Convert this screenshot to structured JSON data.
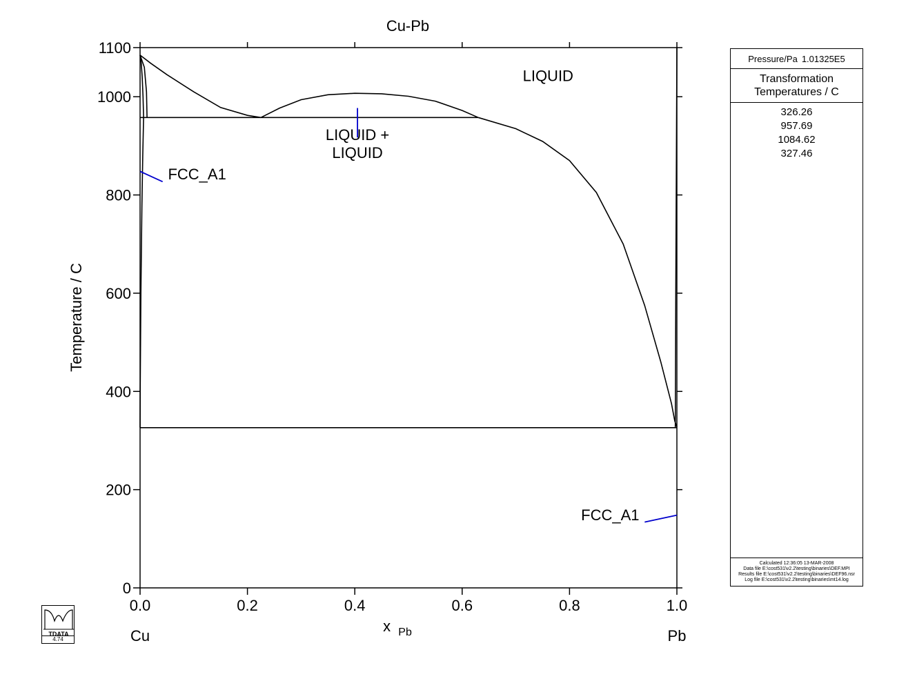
{
  "chart_data": {
    "type": "line",
    "title": "Cu-Pb",
    "xlabel": "x",
    "xlabel_subscript": "Pb",
    "ylabel": "Temperature / C",
    "xlim": [
      0,
      1
    ],
    "ylim": [
      0,
      1100
    ],
    "x_ticks": [
      0.0,
      0.2,
      0.4,
      0.6,
      0.8,
      1.0
    ],
    "x_tick_labels": [
      "0.0",
      "0.2",
      "0.4",
      "0.6",
      "0.8",
      "1.0"
    ],
    "y_ticks": [
      0,
      200,
      400,
      600,
      800,
      1000,
      1100
    ],
    "y_tick_labels": [
      "0",
      "200",
      "400",
      "600",
      "800",
      "1000",
      "1100"
    ],
    "grid": false,
    "left_component": "Cu",
    "right_component": "Pb",
    "series": [
      {
        "color": "#000000",
        "points": [
          [
            0.0,
            1084.62
          ],
          [
            0.02,
            1068
          ],
          [
            0.05,
            1045
          ],
          [
            0.1,
            1010
          ],
          [
            0.15,
            978
          ],
          [
            0.2,
            962
          ],
          [
            0.225,
            957.69
          ]
        ]
      },
      {
        "color": "#000000",
        "points": [
          [
            0.225,
            957.69
          ],
          [
            0.26,
            977
          ],
          [
            0.3,
            994
          ],
          [
            0.35,
            1004
          ],
          [
            0.4,
            1007
          ],
          [
            0.45,
            1006
          ],
          [
            0.5,
            1001
          ],
          [
            0.55,
            991
          ],
          [
            0.6,
            972
          ],
          [
            0.63,
            957.69
          ]
        ]
      },
      {
        "color": "#000000",
        "points": [
          [
            0.63,
            957.69
          ],
          [
            0.7,
            935
          ],
          [
            0.75,
            909
          ],
          [
            0.8,
            870
          ],
          [
            0.85,
            805
          ],
          [
            0.9,
            700
          ],
          [
            0.94,
            575
          ],
          [
            0.97,
            460
          ],
          [
            0.99,
            375
          ],
          [
            0.996,
            340
          ],
          [
            1.0,
            327.46
          ]
        ]
      },
      {
        "color": "#000000",
        "points": [
          [
            0.0,
            1084.62
          ],
          [
            0.002,
            1070
          ],
          [
            0.004,
            1040
          ],
          [
            0.0055,
            1000
          ],
          [
            0.0065,
            957.69
          ]
        ]
      },
      {
        "color": "#000000",
        "points": [
          [
            0.0,
            1084.62
          ],
          [
            0.008,
            1060
          ],
          [
            0.012,
            1010
          ],
          [
            0.013,
            957.69
          ]
        ]
      },
      {
        "color": "#000000",
        "points": [
          [
            0.0065,
            957.69
          ],
          [
            0.005,
            880
          ],
          [
            0.0035,
            780
          ],
          [
            0.0015,
            600
          ],
          [
            0.0003,
            400
          ],
          [
            0.0,
            326.26
          ]
        ]
      },
      {
        "color": "#000000",
        "points": [
          [
            0.0,
            957.69
          ],
          [
            0.63,
            957.69
          ]
        ]
      },
      {
        "color": "#000000",
        "points": [
          [
            0.0,
            326.26
          ],
          [
            1.0,
            326.26
          ]
        ]
      },
      {
        "color": "#000000",
        "points": [
          [
            0.997,
            326.26
          ],
          [
            0.998,
            600
          ],
          [
            1.0,
            1100
          ]
        ]
      }
    ],
    "annotations": [
      {
        "text": "LIQUID",
        "x": 0.76,
        "y": 1032
      },
      {
        "text": "LIQUID +",
        "x": 0.405,
        "y": 912
      },
      {
        "text": "LIQUID",
        "x": 0.405,
        "y": 875
      },
      {
        "text": "FCC_A1",
        "x": 0.052,
        "y": 832
      },
      {
        "text": "FCC_A1",
        "x": 0.93,
        "y": 138
      }
    ],
    "leader_lines": [
      {
        "color": "#0000cc",
        "from": [
          0.405,
          977
        ],
        "to": [
          0.405,
          917
        ]
      },
      {
        "color": "#0000cc",
        "from": [
          0.0,
          848
        ],
        "to": [
          0.042,
          827
        ]
      },
      {
        "color": "#0000cc",
        "from": [
          1.0,
          148
        ],
        "to": [
          0.94,
          134
        ]
      }
    ]
  },
  "side_panel": {
    "pressure_label": "Pressure/Pa",
    "pressure_value": "1.01325E5",
    "header_line1": "Transformation",
    "header_line2": "Temperatures / C",
    "temperatures": [
      "326.26",
      "957.69",
      "1084.62",
      "327.46"
    ],
    "footer": {
      "calculated": "Calculated  12:36:05  13-MAR-2008",
      "data_file": "Data file  E:\\cost531\\v2.2\\testing\\binaries\\DEF.MPI",
      "results_file": "Results file  E:\\cost531\\v2.2\\testing\\binaries\\DEF96.nsr",
      "log_file": "Log file  E:\\cost531\\v2.2\\testing\\binaries\\mt14.log"
    }
  },
  "logo": {
    "text": "TDATA",
    "version": "4.74"
  }
}
